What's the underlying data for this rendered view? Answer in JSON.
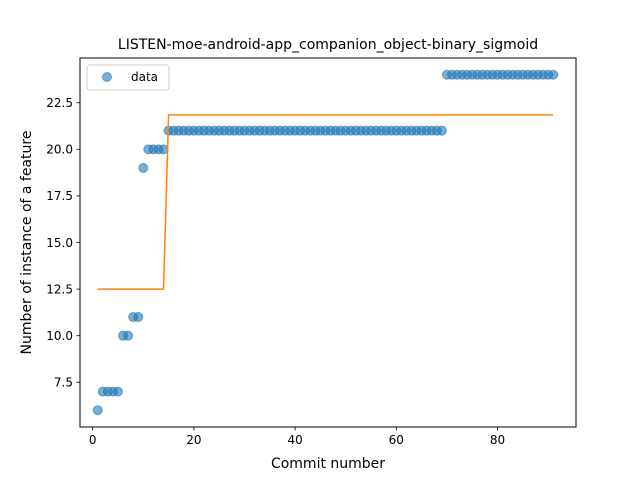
{
  "chart_data": {
    "type": "scatter",
    "title": "LISTEN-moe-android-app_companion_object-binary_sigmoid",
    "xlabel": "Commit number",
    "ylabel": "Number of instance of a feature",
    "xlim": [
      -2.5,
      95.5
    ],
    "ylim": [
      5.1,
      24.9
    ],
    "x_ticks": [
      0,
      20,
      40,
      60,
      80
    ],
    "x_tick_labels": [
      "0",
      "20",
      "40",
      "60",
      "80"
    ],
    "y_ticks": [
      7.5,
      10.0,
      12.5,
      15.0,
      17.5,
      20.0,
      22.5
    ],
    "y_tick_labels": [
      "7.5",
      "10.0",
      "12.5",
      "15.0",
      "17.5",
      "20.0",
      "22.5"
    ],
    "grid": false,
    "legend_position": "upper-left",
    "colors": {
      "data": "#1f77b4",
      "fit": "#ff7f0e"
    },
    "series": [
      {
        "name": "data",
        "kind": "scatter",
        "x": [
          1,
          2,
          3,
          4,
          5,
          6,
          7,
          8,
          9,
          10,
          11,
          12,
          13,
          14,
          15,
          16,
          17,
          18,
          19,
          20,
          21,
          22,
          23,
          24,
          25,
          26,
          27,
          28,
          29,
          30,
          31,
          32,
          33,
          34,
          35,
          36,
          37,
          38,
          39,
          40,
          41,
          42,
          43,
          44,
          45,
          46,
          47,
          48,
          49,
          50,
          51,
          52,
          53,
          54,
          55,
          56,
          57,
          58,
          59,
          60,
          61,
          62,
          63,
          64,
          65,
          66,
          67,
          68,
          69,
          70,
          71,
          72,
          73,
          74,
          75,
          76,
          77,
          78,
          79,
          80,
          81,
          82,
          83,
          84,
          85,
          86,
          87,
          88,
          89,
          90,
          91
        ],
        "y": [
          6,
          7,
          7,
          7,
          7,
          10,
          10,
          11,
          11,
          19,
          20,
          20,
          20,
          20,
          21,
          21,
          21,
          21,
          21,
          21,
          21,
          21,
          21,
          21,
          21,
          21,
          21,
          21,
          21,
          21,
          21,
          21,
          21,
          21,
          21,
          21,
          21,
          21,
          21,
          21,
          21,
          21,
          21,
          21,
          21,
          21,
          21,
          21,
          21,
          21,
          21,
          21,
          21,
          21,
          21,
          21,
          21,
          21,
          21,
          21,
          21,
          21,
          21,
          21,
          21,
          21,
          21,
          21,
          21,
          24,
          24,
          24,
          24,
          24,
          24,
          24,
          24,
          24,
          24,
          24,
          24,
          24,
          24,
          24,
          24,
          24,
          24,
          24,
          24,
          24,
          24
        ]
      },
      {
        "kind": "line",
        "x": [
          1,
          2,
          3,
          4,
          5,
          6,
          7,
          8,
          9,
          10,
          11,
          12,
          13,
          14,
          15,
          16,
          17,
          18,
          19,
          20,
          21,
          22,
          23,
          24,
          25,
          26,
          27,
          28,
          29,
          30,
          31,
          32,
          33,
          34,
          35,
          36,
          37,
          38,
          39,
          40,
          41,
          42,
          43,
          44,
          45,
          46,
          47,
          48,
          49,
          50,
          51,
          52,
          53,
          54,
          55,
          56,
          57,
          58,
          59,
          60,
          61,
          62,
          63,
          64,
          65,
          66,
          67,
          68,
          69,
          70,
          71,
          72,
          73,
          74,
          75,
          76,
          77,
          78,
          79,
          80,
          81,
          82,
          83,
          84,
          85,
          86,
          87,
          88,
          89,
          90,
          91
        ],
        "y": [
          12.5,
          12.5,
          12.5,
          12.5,
          12.5,
          12.5,
          12.5,
          12.5,
          12.5,
          12.5,
          12.5,
          12.5,
          12.5,
          12.5,
          21.85,
          21.85,
          21.85,
          21.85,
          21.85,
          21.85,
          21.85,
          21.85,
          21.85,
          21.85,
          21.85,
          21.85,
          21.85,
          21.85,
          21.85,
          21.85,
          21.85,
          21.85,
          21.85,
          21.85,
          21.85,
          21.85,
          21.85,
          21.85,
          21.85,
          21.85,
          21.85,
          21.85,
          21.85,
          21.85,
          21.85,
          21.85,
          21.85,
          21.85,
          21.85,
          21.85,
          21.85,
          21.85,
          21.85,
          21.85,
          21.85,
          21.85,
          21.85,
          21.85,
          21.85,
          21.85,
          21.85,
          21.85,
          21.85,
          21.85,
          21.85,
          21.85,
          21.85,
          21.85,
          21.85,
          21.85,
          21.85,
          21.85,
          21.85,
          21.85,
          21.85,
          21.85,
          21.85,
          21.85,
          21.85,
          21.85,
          21.85,
          21.85,
          21.85,
          21.85,
          21.85,
          21.85,
          21.85,
          21.85,
          21.85,
          21.85,
          21.85
        ]
      }
    ]
  }
}
